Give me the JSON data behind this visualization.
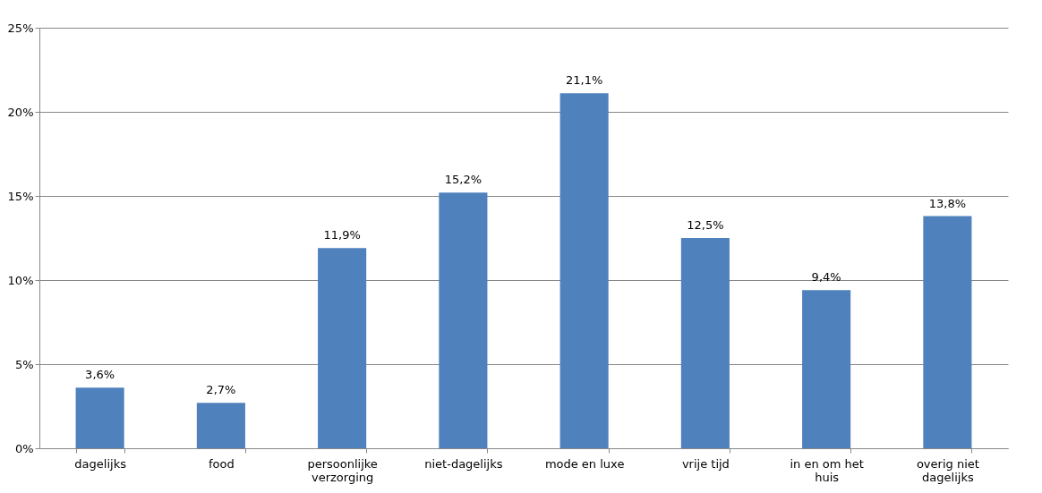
{
  "chart_data": {
    "type": "bar",
    "categories": [
      "dagelijks",
      "food",
      "persoonlijke verzorging",
      "niet-dagelijks",
      "mode en luxe",
      "vrije tijd",
      "in en om het huis",
      "overig niet dagelijks"
    ],
    "values": [
      3.6,
      2.7,
      11.9,
      15.2,
      21.1,
      12.5,
      9.4,
      13.8
    ],
    "value_labels": [
      "3,6%",
      "2,7%",
      "11,9%",
      "15,2%",
      "21,1%",
      "12,5%",
      "9,4%",
      "13,8%"
    ],
    "color": "#4f81bd",
    "ylim": [
      0,
      25
    ],
    "yticks": [
      {
        "value": 0,
        "label": "0%"
      },
      {
        "value": 5,
        "label": "5%"
      },
      {
        "value": 10,
        "label": "10%"
      },
      {
        "value": 15,
        "label": "15%"
      },
      {
        "value": 20,
        "label": "20%"
      },
      {
        "value": 25,
        "label": "25%"
      }
    ],
    "grid": "y"
  }
}
